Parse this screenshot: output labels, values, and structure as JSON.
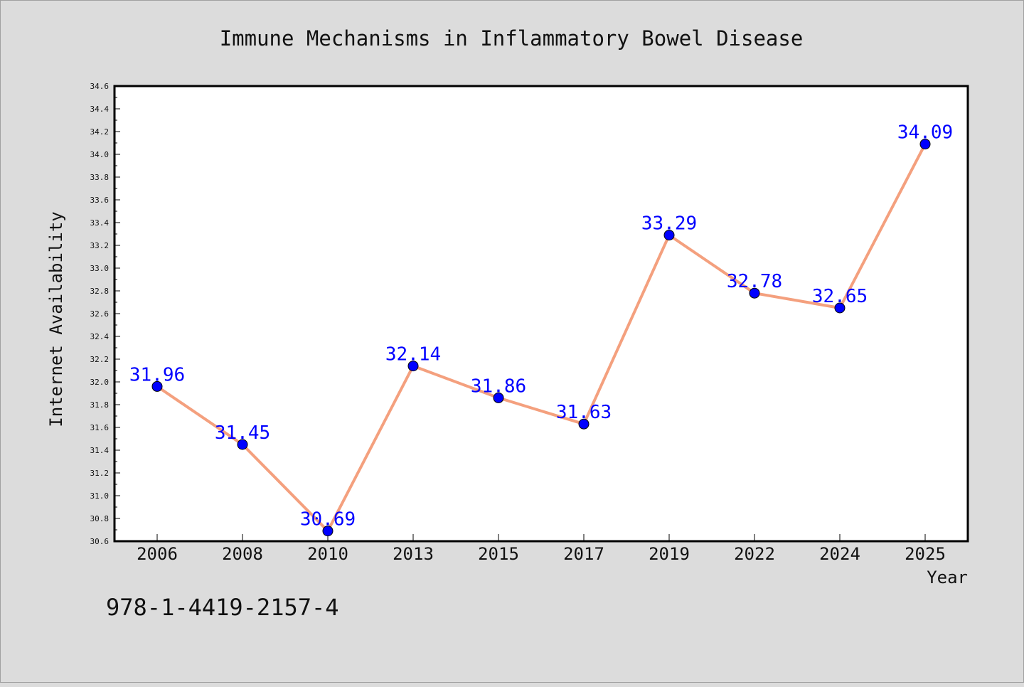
{
  "colors": {
    "background": "#dcdcdc",
    "plot_background": "#ffffff",
    "line": "#f4a07e",
    "marker": "#0000ff",
    "label": "#0000ff",
    "axis": "#000000"
  },
  "footer": {
    "code": "978-1-4419-2157-4"
  },
  "chart_data": {
    "type": "line",
    "title": "Immune Mechanisms in Inflammatory Bowel Disease",
    "xlabel": "Year",
    "ylabel": "Internet Availability",
    "categories": [
      "2006",
      "2008",
      "2010",
      "2013",
      "2015",
      "2017",
      "2019",
      "2022",
      "2024",
      "2025"
    ],
    "series": [
      {
        "values": [
          31.96,
          31.45,
          30.69,
          32.14,
          31.86,
          31.63,
          33.29,
          32.78,
          32.65,
          34.09
        ],
        "data_labels": [
          "31.96",
          "31.45",
          "30.69",
          "32.14",
          "31.86",
          "31.63",
          "33.29",
          "32.78",
          "32.65",
          "34.09"
        ]
      }
    ],
    "ylim": [
      30.6,
      34.6
    ],
    "yticks": [
      "30.6",
      "30.8",
      "31.0",
      "31.2",
      "31.4",
      "31.6",
      "31.8",
      "32.0",
      "32.2",
      "32.4",
      "32.6",
      "32.8",
      "33.0",
      "33.2",
      "33.4",
      "33.6",
      "33.8",
      "34.0",
      "34.2",
      "34.4",
      "34.6"
    ],
    "grid": false,
    "legend": "none"
  }
}
